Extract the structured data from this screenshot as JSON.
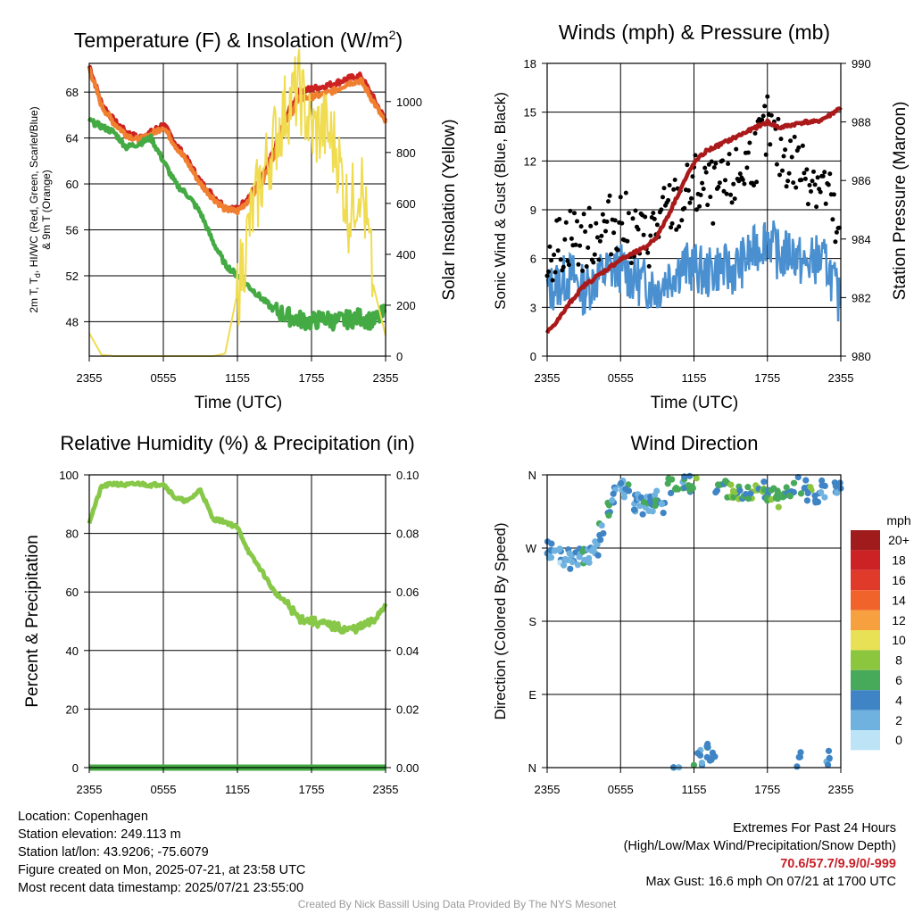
{
  "panels": {
    "temperature": {
      "title": "Temperature (F) & Insolation (W/m",
      "title_sup": "2",
      "title_end": ")",
      "ylabel_left_line1": "2m T, T",
      "ylabel_left_sub": "d",
      "ylabel_left_line1_end": ", HI/WC (Red, Green, Scarlet/Blue)",
      "ylabel_left_line2": "& 9m T (Orange)",
      "ylabel_right": "Solar Insolation (Yellow)",
      "xlabel": "Time (UTC)",
      "y_ticks_left": [
        "48",
        "52",
        "56",
        "60",
        "64",
        "68"
      ],
      "y_ticks_right": [
        "0",
        "200",
        "400",
        "600",
        "800",
        "1000"
      ],
      "x_ticks": [
        "2355",
        "0555",
        "1155",
        "1755",
        "2355"
      ]
    },
    "winds": {
      "title": "Winds (mph) & Pressure (mb)",
      "ylabel_left": "Sonic Wind & Gust (Blue, Black)",
      "ylabel_right": "Station Pressure (Maroon)",
      "xlabel": "Time (UTC)",
      "y_ticks_left": [
        "0",
        "3",
        "6",
        "9",
        "12",
        "15",
        "18"
      ],
      "y_ticks_right": [
        "980",
        "982",
        "984",
        "986",
        "988",
        "990"
      ],
      "x_ticks": [
        "2355",
        "0555",
        "1155",
        "1755",
        "2355"
      ]
    },
    "humidity": {
      "title": "Relative Humidity (%) & Precipitation (in)",
      "ylabel_left": "Percent & Precipitation",
      "y_ticks_left": [
        "0",
        "20",
        "40",
        "60",
        "80",
        "100"
      ],
      "y_ticks_right": [
        "0.00",
        "0.02",
        "0.04",
        "0.06",
        "0.08",
        "0.10"
      ],
      "x_ticks": [
        "2355",
        "0555",
        "1155",
        "1755",
        "2355"
      ]
    },
    "direction": {
      "title": "Wind Direction",
      "ylabel_left": "Direction (Colored By Speed)",
      "y_ticks_left": [
        "N",
        "E",
        "S",
        "W",
        "N"
      ],
      "x_ticks": [
        "2355",
        "0555",
        "1155",
        "1755",
        "2355"
      ],
      "legend_title": "mph",
      "legend_labels": [
        "20+",
        "18",
        "16",
        "14",
        "12",
        "10",
        "8",
        "6",
        "4",
        "2",
        "0"
      ],
      "legend_colors": [
        "#a01c1c",
        "#cc2226",
        "#e03a2a",
        "#f0642c",
        "#f7a040",
        "#e8e055",
        "#8cc63f",
        "#47a95a",
        "#3f84c4",
        "#6fb2e0",
        "#bde3f6"
      ]
    }
  },
  "info": {
    "location": "Location: Copenhagen",
    "elevation": "Station elevation: 249.113 m",
    "latlon": "Station lat/lon: 43.9206; -75.6079",
    "created": "Figure created on Mon, 2025-07-21, at 23:58 UTC",
    "recent": "Most recent data timestamp: 2025/07/21 23:55:00"
  },
  "extremes": {
    "title": "Extremes For Past 24 Hours",
    "subtitle": "(High/Low/Max Wind/Precipitation/Snow Depth)",
    "values": "70.6/57.7/9.9/0/-999",
    "max_gust": "Max Gust: 16.6 mph On 07/21 at 1700 UTC"
  },
  "credit": "Created By Nick Bassill Using Data Provided By The NYS Mesonet",
  "chart_data": [
    {
      "type": "line",
      "title": "Temperature (F) & Insolation (W/m2)",
      "xlabel": "Time (UTC)",
      "ylabel": "2m T, Td, HI/WC (Red, Green, Scarlet/Blue) & 9m T (Orange)",
      "ylabel_right": "Solar Insolation (Yellow)",
      "ylim": [
        45,
        70.5
      ],
      "ylim_right": [
        0,
        1150
      ],
      "x_hours": [
        0,
        1,
        2,
        3,
        4,
        5,
        6,
        7,
        8,
        9,
        10,
        11,
        12,
        13,
        14,
        15,
        16,
        17,
        18,
        19,
        20,
        21,
        22,
        23,
        24
      ],
      "series": [
        {
          "color": "#cc2222",
          "values": [
            70.3,
            67,
            65.5,
            64.5,
            64,
            64.5,
            65.2,
            63.5,
            62,
            60.2,
            59,
            58,
            57.8,
            59,
            60.5,
            63,
            66,
            68,
            68.3,
            68.5,
            68.8,
            69.2,
            69.4,
            67.5,
            65.5
          ]
        },
        {
          "color": "#f08030",
          "values": [
            70.1,
            66.8,
            65.3,
            64.3,
            63.8,
            64.3,
            65,
            63.3,
            61.8,
            60,
            58.8,
            57.8,
            57.6,
            58.7,
            60.2,
            62.7,
            65.5,
            67.4,
            67.6,
            67.8,
            68.2,
            68.8,
            69,
            67.2,
            65.3
          ]
        },
        {
          "color": "#44aa44",
          "values": [
            65.5,
            65,
            64.5,
            63.2,
            63.5,
            64,
            62,
            60,
            59,
            57.5,
            55,
            53,
            52,
            51,
            50,
            49,
            48.5,
            48.2,
            48,
            48.3,
            48,
            48.2,
            48.4,
            48,
            48.8
          ]
        },
        {
          "color": "#f0dc50",
          "axis": "right",
          "values": [
            90,
            5,
            0,
            0,
            0,
            0,
            0,
            0,
            0,
            0,
            0,
            10,
            250,
            520,
            700,
            850,
            980,
            1050,
            880,
            900,
            820,
            560,
            700,
            280,
            80
          ]
        }
      ]
    },
    {
      "type": "line",
      "title": "Winds (mph) & Pressure (mb)",
      "xlabel": "Time (UTC)",
      "ylabel": "Sonic Wind & Gust (Blue, Black)",
      "ylabel_right": "Station Pressure (Maroon)",
      "ylim": [
        0,
        18
      ],
      "ylim_right": [
        980,
        990
      ],
      "x_hours": [
        0,
        1,
        2,
        3,
        4,
        5,
        6,
        7,
        8,
        9,
        10,
        11,
        12,
        13,
        14,
        15,
        16,
        17,
        18,
        19,
        20,
        21,
        22,
        23,
        24
      ],
      "series": [
        {
          "color": "#4a90d0",
          "values": [
            4,
            4.5,
            5,
            4,
            4.8,
            5.2,
            5.5,
            4.8,
            4.5,
            4.2,
            5,
            5.5,
            5.5,
            5,
            5.5,
            5.2,
            5.8,
            6.5,
            7.5,
            6,
            6.5,
            5.5,
            6,
            5.5,
            3
          ]
        },
        {
          "color": "#000000",
          "type": "scatter",
          "values": [
            6.5,
            6.8,
            7.5,
            7,
            7.5,
            8,
            8.5,
            7.5,
            7,
            8,
            9,
            9.5,
            10.5,
            10,
            10,
            10.5,
            11.5,
            12.5,
            14,
            12.5,
            12,
            11.5,
            11,
            10,
            6
          ]
        },
        {
          "color": "#aa1a1a",
          "axis": "right",
          "values": [
            980.8,
            981.3,
            981.9,
            982.4,
            982.7,
            983.0,
            983.3,
            983.5,
            983.7,
            984.1,
            984.9,
            985.8,
            986.6,
            987.0,
            987.2,
            987.4,
            987.6,
            987.8,
            988.0,
            987.8,
            987.9,
            988.0,
            988.0,
            988.2,
            988.5
          ]
        }
      ]
    },
    {
      "type": "line",
      "title": "Relative Humidity (%) & Precipitation (in)",
      "ylabel": "Percent & Precipitation",
      "ylim": [
        0,
        100
      ],
      "ylim_right": [
        0,
        0.1
      ],
      "x_hours": [
        0,
        1,
        2,
        3,
        4,
        5,
        6,
        7,
        8,
        9,
        10,
        11,
        12,
        13,
        14,
        15,
        16,
        17,
        18,
        19,
        20,
        21,
        22,
        23,
        24
      ],
      "series": [
        {
          "color": "#88c848",
          "values": [
            84,
            96,
            97,
            96.5,
            97,
            96.5,
            97,
            92,
            91,
            95,
            85,
            84,
            82,
            73,
            67,
            60,
            56,
            51,
            50,
            49,
            48,
            47,
            48,
            50,
            56
          ]
        },
        {
          "color": "#44aa44",
          "axis": "right",
          "values": [
            0,
            0,
            0,
            0,
            0,
            0,
            0,
            0,
            0,
            0,
            0,
            0,
            0,
            0,
            0,
            0,
            0,
            0,
            0,
            0,
            0,
            0,
            0,
            0,
            0
          ]
        }
      ]
    },
    {
      "type": "scatter",
      "title": "Wind Direction",
      "ylabel": "Direction (Colored By Speed)",
      "ylim": [
        0,
        360
      ],
      "x_hours": [
        0,
        0.5,
        1,
        1.5,
        2,
        2.5,
        3,
        3.5,
        4,
        4.5,
        5,
        5.5,
        6,
        6.5,
        7,
        7.5,
        8,
        8.5,
        9,
        9.5,
        10,
        10.5,
        11,
        11.5,
        12,
        12.5,
        13,
        13.5,
        14,
        14.5,
        15,
        15.5,
        16,
        16.5,
        17,
        17.5,
        18,
        18.5,
        19,
        19.5,
        20,
        20.5,
        21,
        21.5,
        22,
        22.5,
        23,
        23.5,
        24
      ],
      "direction_deg": [
        268,
        265,
        262,
        258,
        255,
        260,
        258,
        262,
        270,
        290,
        320,
        335,
        345,
        342,
        325,
        330,
        322,
        325,
        330,
        320,
        345,
        352,
        350,
        348,
        354,
        12,
        20,
        15,
        345,
        342,
        338,
        340,
        335,
        340,
        345,
        342,
        338,
        340,
        330,
        335,
        340,
        8,
        345,
        338,
        335,
        342,
        12,
        340,
        345
      ],
      "speed_mph": [
        4,
        4,
        3,
        4,
        5,
        4,
        5,
        4,
        4,
        5,
        6,
        5,
        4,
        5,
        4,
        5,
        5,
        4,
        5,
        4,
        5,
        6,
        5,
        6,
        7,
        5,
        6,
        5,
        6,
        7,
        8,
        7,
        6,
        7,
        8,
        7,
        6,
        7,
        8,
        7,
        6,
        5,
        6,
        7,
        6,
        5,
        4,
        4,
        3
      ]
    }
  ]
}
